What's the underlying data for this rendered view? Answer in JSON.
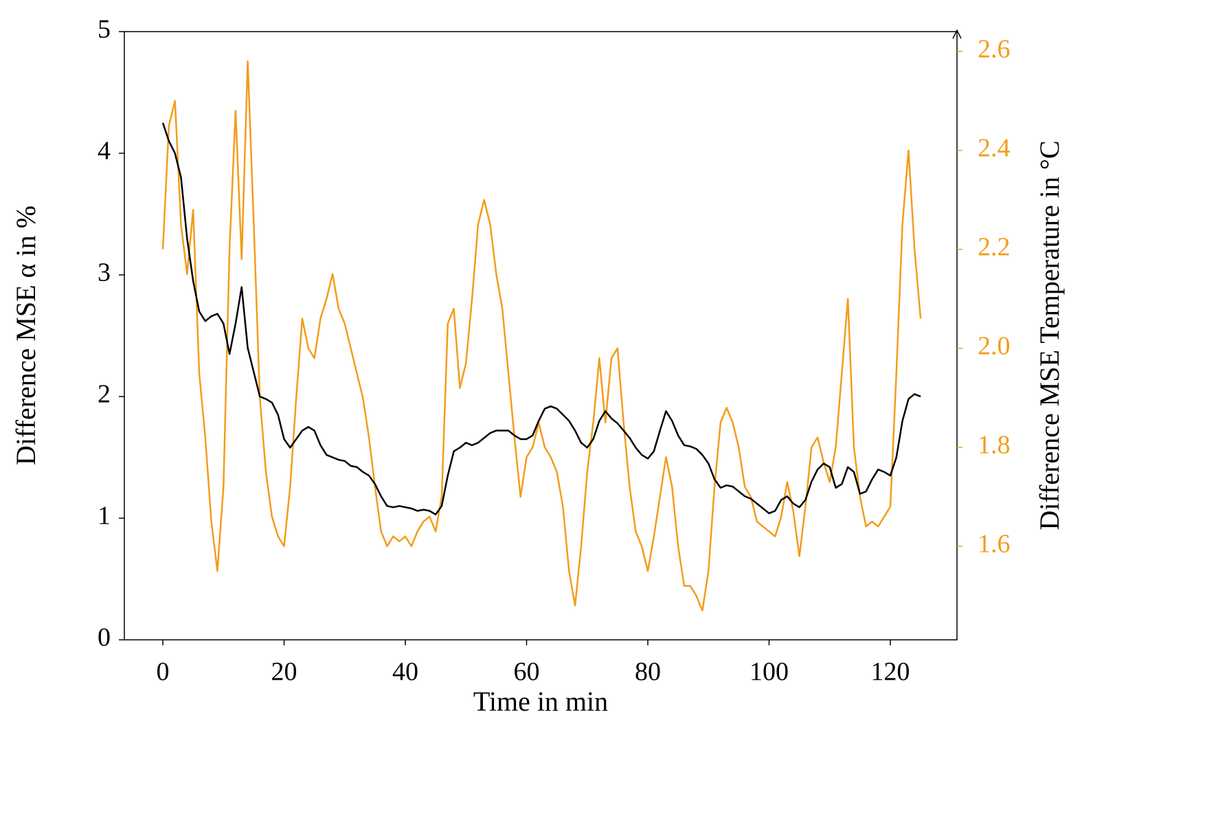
{
  "chart_data": {
    "type": "line",
    "xlabel": "Time in min",
    "ylabel": "Difference MSE α in %",
    "y2label": "Difference MSE Temperature in °C",
    "x": [
      0,
      1,
      2,
      3,
      4,
      5,
      6,
      7,
      8,
      9,
      10,
      11,
      12,
      13,
      14,
      15,
      16,
      17,
      18,
      19,
      20,
      21,
      22,
      23,
      24,
      25,
      26,
      27,
      28,
      29,
      30,
      31,
      32,
      33,
      34,
      35,
      36,
      37,
      38,
      39,
      40,
      41,
      42,
      43,
      44,
      45,
      46,
      47,
      48,
      49,
      50,
      51,
      52,
      53,
      54,
      55,
      56,
      57,
      58,
      59,
      60,
      61,
      62,
      63,
      64,
      65,
      66,
      67,
      68,
      69,
      70,
      71,
      72,
      73,
      74,
      75,
      76,
      77,
      78,
      79,
      80,
      81,
      82,
      83,
      84,
      85,
      86,
      87,
      88,
      89,
      90,
      91,
      92,
      93,
      94,
      95,
      96,
      97,
      98,
      99,
      100,
      101,
      102,
      103,
      104,
      105,
      106,
      107,
      108,
      109,
      110,
      111,
      112,
      113,
      114,
      115,
      116,
      117,
      118,
      119,
      120,
      121,
      122,
      123,
      124,
      125
    ],
    "series": [
      {
        "color": "#000000",
        "values": [
          4.25,
          4.1,
          4.0,
          3.8,
          3.3,
          2.95,
          2.7,
          2.62,
          2.66,
          2.68,
          2.6,
          2.35,
          2.6,
          2.9,
          2.4,
          2.2,
          2.0,
          1.98,
          1.95,
          1.85,
          1.65,
          1.58,
          1.65,
          1.72,
          1.75,
          1.72,
          1.6,
          1.52,
          1.5,
          1.48,
          1.47,
          1.43,
          1.42,
          1.38,
          1.35,
          1.28,
          1.18,
          1.1,
          1.09,
          1.1,
          1.09,
          1.08,
          1.06,
          1.07,
          1.06,
          1.03,
          1.1,
          1.35,
          1.55,
          1.58,
          1.62,
          1.6,
          1.62,
          1.66,
          1.7,
          1.72,
          1.72,
          1.72,
          1.68,
          1.65,
          1.65,
          1.68,
          1.8,
          1.9,
          1.92,
          1.9,
          1.85,
          1.8,
          1.72,
          1.62,
          1.58,
          1.65,
          1.8,
          1.88,
          1.82,
          1.78,
          1.72,
          1.66,
          1.58,
          1.52,
          1.49,
          1.55,
          1.72,
          1.88,
          1.8,
          1.68,
          1.6,
          1.59,
          1.57,
          1.52,
          1.45,
          1.32,
          1.25,
          1.27,
          1.26,
          1.22,
          1.18,
          1.16,
          1.12,
          1.08,
          1.04,
          1.06,
          1.15,
          1.18,
          1.12,
          1.09,
          1.15,
          1.3,
          1.4,
          1.45,
          1.42,
          1.25,
          1.28,
          1.42,
          1.38,
          1.2,
          1.22,
          1.32,
          1.4,
          1.38,
          1.35,
          1.5,
          1.8,
          1.98,
          2.02,
          2.0
        ]
      },
      {
        "color": "#f39c1a",
        "axis": "y2",
        "values": [
          2.2,
          2.45,
          2.5,
          2.25,
          2.15,
          2.28,
          1.95,
          1.82,
          1.65,
          1.55,
          1.72,
          2.2,
          2.48,
          2.18,
          2.58,
          2.25,
          1.9,
          1.75,
          1.66,
          1.62,
          1.6,
          1.72,
          1.9,
          2.06,
          2.0,
          1.98,
          2.06,
          2.1,
          2.15,
          2.08,
          2.05,
          2.0,
          1.95,
          1.9,
          1.82,
          1.72,
          1.63,
          1.6,
          1.62,
          1.61,
          1.62,
          1.6,
          1.63,
          1.65,
          1.66,
          1.63,
          1.7,
          2.05,
          2.08,
          1.92,
          1.97,
          2.1,
          2.25,
          2.3,
          2.25,
          2.15,
          2.08,
          1.95,
          1.82,
          1.7,
          1.78,
          1.8,
          1.85,
          1.8,
          1.78,
          1.75,
          1.68,
          1.55,
          1.48,
          1.6,
          1.75,
          1.85,
          1.98,
          1.85,
          1.98,
          2.0,
          1.85,
          1.72,
          1.63,
          1.6,
          1.55,
          1.62,
          1.7,
          1.78,
          1.72,
          1.6,
          1.52,
          1.52,
          1.5,
          1.47,
          1.55,
          1.72,
          1.85,
          1.88,
          1.85,
          1.8,
          1.72,
          1.7,
          1.65,
          1.64,
          1.63,
          1.62,
          1.66,
          1.73,
          1.67,
          1.58,
          1.68,
          1.8,
          1.82,
          1.77,
          1.73,
          1.8,
          1.95,
          2.1,
          1.8,
          1.7,
          1.64,
          1.65,
          1.64,
          1.66,
          1.68,
          1.95,
          2.25,
          2.4,
          2.2,
          2.06
        ]
      }
    ],
    "xlim": [
      -6.35,
      131
    ],
    "xticks": [
      0,
      20,
      40,
      60,
      80,
      100,
      120
    ],
    "ylim": [
      0,
      5
    ],
    "yticks": [
      0,
      1,
      2,
      3,
      4,
      5
    ],
    "y2lim": [
      1.411,
      2.64
    ],
    "y2ticks": [
      1.6,
      1.8,
      {
        "value": 2,
        "label": "2.0"
      },
      2.2,
      2.4,
      2.6
    ],
    "y2color": "#f39c1a"
  }
}
